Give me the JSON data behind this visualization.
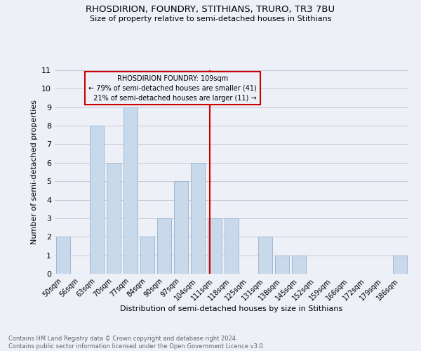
{
  "title": "RHOSDIRION, FOUNDRY, STITHIANS, TRURO, TR3 7BU",
  "subtitle": "Size of property relative to semi-detached houses in Stithians",
  "xlabel": "Distribution of semi-detached houses by size in Stithians",
  "ylabel": "Number of semi-detached properties",
  "footer_line1": "Contains HM Land Registry data © Crown copyright and database right 2024.",
  "footer_line2": "Contains public sector information licensed under the Open Government Licence v3.0.",
  "categories": [
    "50sqm",
    "56sqm",
    "63sqm",
    "70sqm",
    "77sqm",
    "84sqm",
    "90sqm",
    "97sqm",
    "104sqm",
    "111sqm",
    "118sqm",
    "125sqm",
    "131sqm",
    "138sqm",
    "145sqm",
    "152sqm",
    "159sqm",
    "166sqm",
    "172sqm",
    "179sqm",
    "186sqm"
  ],
  "values": [
    2,
    0,
    8,
    6,
    9,
    2,
    3,
    5,
    6,
    3,
    3,
    0,
    2,
    1,
    1,
    0,
    0,
    0,
    0,
    0,
    1
  ],
  "bar_color": "#c9d9ec",
  "bar_edge_color": "#a0b8d0",
  "grid_color": "#c8c8d8",
  "property_label": "RHOSDIRION FOUNDRY: 109sqm",
  "pct_smaller": 79,
  "count_smaller": 41,
  "pct_larger": 21,
  "count_larger": 11,
  "vline_color": "#cc0000",
  "annotation_box_edge": "#cc0000",
  "ylim": [
    0,
    11
  ],
  "yticks": [
    0,
    1,
    2,
    3,
    4,
    5,
    6,
    7,
    8,
    9,
    10,
    11
  ],
  "vline_x_pos": 8.714,
  "background_color": "#eef0f8"
}
